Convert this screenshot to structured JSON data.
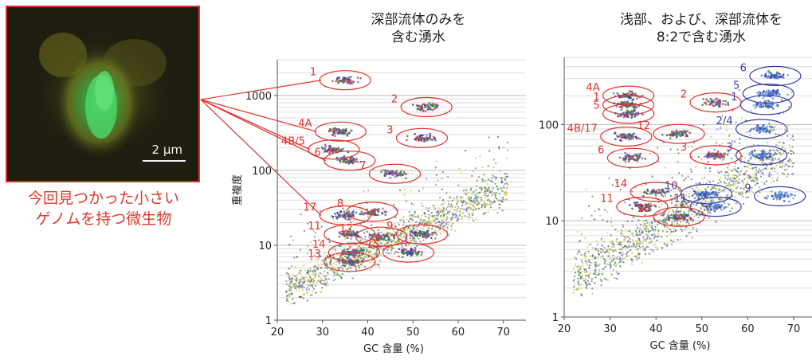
{
  "micrograph": {
    "scale_label": "2 μm"
  },
  "caption": [
    "今回見つかった小さい",
    "ゲノムを持つ微生物"
  ],
  "colors": {
    "highlight": "#e0302a",
    "cluster_blue": "#3a3fa5",
    "dot_yellow": "#c8c83c",
    "dot_green": "#2a8a3a"
  },
  "chart_data": [
    {
      "type": "scatter",
      "title": [
        "深部流体のみを",
        "含む湧水"
      ],
      "xlabel": "GC 含量 (%)",
      "ylabel": "重複度",
      "x_ticks": [
        "20",
        "30",
        "40",
        "50",
        "60",
        "70"
      ],
      "y_ticks": [
        "1",
        "10",
        "100",
        "1000"
      ],
      "xlim": [
        20,
        75
      ],
      "ylim": [
        1,
        3000
      ],
      "y_scale": "log",
      "grid": "horizontal",
      "clusters": [
        {
          "label": "1",
          "gc": 35,
          "coverage": 1600,
          "color": "red"
        },
        {
          "label": "2",
          "gc": 53,
          "coverage": 700,
          "color": "red"
        },
        {
          "label": "3",
          "gc": 52,
          "coverage": 270,
          "color": "red"
        },
        {
          "label": "4A",
          "gc": 34,
          "coverage": 330,
          "color": "red"
        },
        {
          "label": "4B/5",
          "gc": 32.5,
          "coverage": 190,
          "color": "red"
        },
        {
          "label": "6",
          "gc": 36,
          "coverage": 135,
          "color": "red"
        },
        {
          "label": "7",
          "gc": 46,
          "coverage": 90,
          "color": "red"
        },
        {
          "label": "8",
          "gc": 41,
          "coverage": 28,
          "color": "red"
        },
        {
          "label": "17",
          "gc": 35,
          "coverage": 25,
          "color": "red"
        },
        {
          "label": "11",
          "gc": 36,
          "coverage": 14,
          "color": "red"
        },
        {
          "label": "12",
          "gc": 43,
          "coverage": 13,
          "color": "red"
        },
        {
          "label": "9",
          "gc": 52,
          "coverage": 14,
          "color": "red"
        },
        {
          "label": "14",
          "gc": 37,
          "coverage": 8,
          "color": "red"
        },
        {
          "label": "15",
          "gc": 49,
          "coverage": 8,
          "color": "red"
        },
        {
          "label": "13",
          "gc": 36,
          "coverage": 6,
          "color": "red"
        }
      ]
    },
    {
      "type": "scatter",
      "title": [
        "浅部、および、深部流体を",
        "8:2で含む湧水"
      ],
      "xlabel": "GC 含量 (%)",
      "ylabel": "",
      "x_ticks": [
        "20",
        "30",
        "40",
        "50",
        "60",
        "70"
      ],
      "y_ticks": [
        "1",
        "10",
        "100"
      ],
      "xlim": [
        20,
        74
      ],
      "ylim": [
        1,
        500
      ],
      "y_scale": "log",
      "grid": "horizontal",
      "clusters": [
        {
          "label": "4A",
          "gc": 34,
          "coverage": 200,
          "color": "red"
        },
        {
          "label": "1",
          "gc": 34,
          "coverage": 160,
          "color": "red"
        },
        {
          "label": "5",
          "gc": 34,
          "coverage": 130,
          "color": "red"
        },
        {
          "label": "2",
          "gc": 53,
          "coverage": 170,
          "color": "red"
        },
        {
          "label": "12",
          "gc": 45,
          "coverage": 80,
          "color": "red"
        },
        {
          "label": "4B/17",
          "gc": 33.5,
          "coverage": 75,
          "color": "red"
        },
        {
          "label": "3",
          "gc": 53,
          "coverage": 48,
          "color": "red"
        },
        {
          "label": "6",
          "gc": 35,
          "coverage": 45,
          "color": "red"
        },
        {
          "label": "14",
          "gc": 40,
          "coverage": 20,
          "color": "red"
        },
        {
          "label": "10",
          "gc": 51,
          "coverage": 19,
          "color": "blue"
        },
        {
          "label": "11",
          "gc": 37,
          "coverage": 14,
          "color": "red"
        },
        {
          "label": "11",
          "gc": 53,
          "coverage": 14,
          "color": "blue"
        },
        {
          "label": "15",
          "gc": 45,
          "coverage": 11,
          "color": "red"
        },
        {
          "label": "6",
          "gc": 66,
          "coverage": 320,
          "color": "blue"
        },
        {
          "label": "5",
          "gc": 64.5,
          "coverage": 210,
          "color": "blue"
        },
        {
          "label": "1",
          "gc": 64,
          "coverage": 160,
          "color": "blue"
        },
        {
          "label": "2/4",
          "gc": 63,
          "coverage": 90,
          "color": "blue"
        },
        {
          "label": "3",
          "gc": 63,
          "coverage": 48,
          "color": "blue"
        },
        {
          "label": "9",
          "gc": 67,
          "coverage": 18,
          "color": "blue"
        }
      ]
    }
  ]
}
